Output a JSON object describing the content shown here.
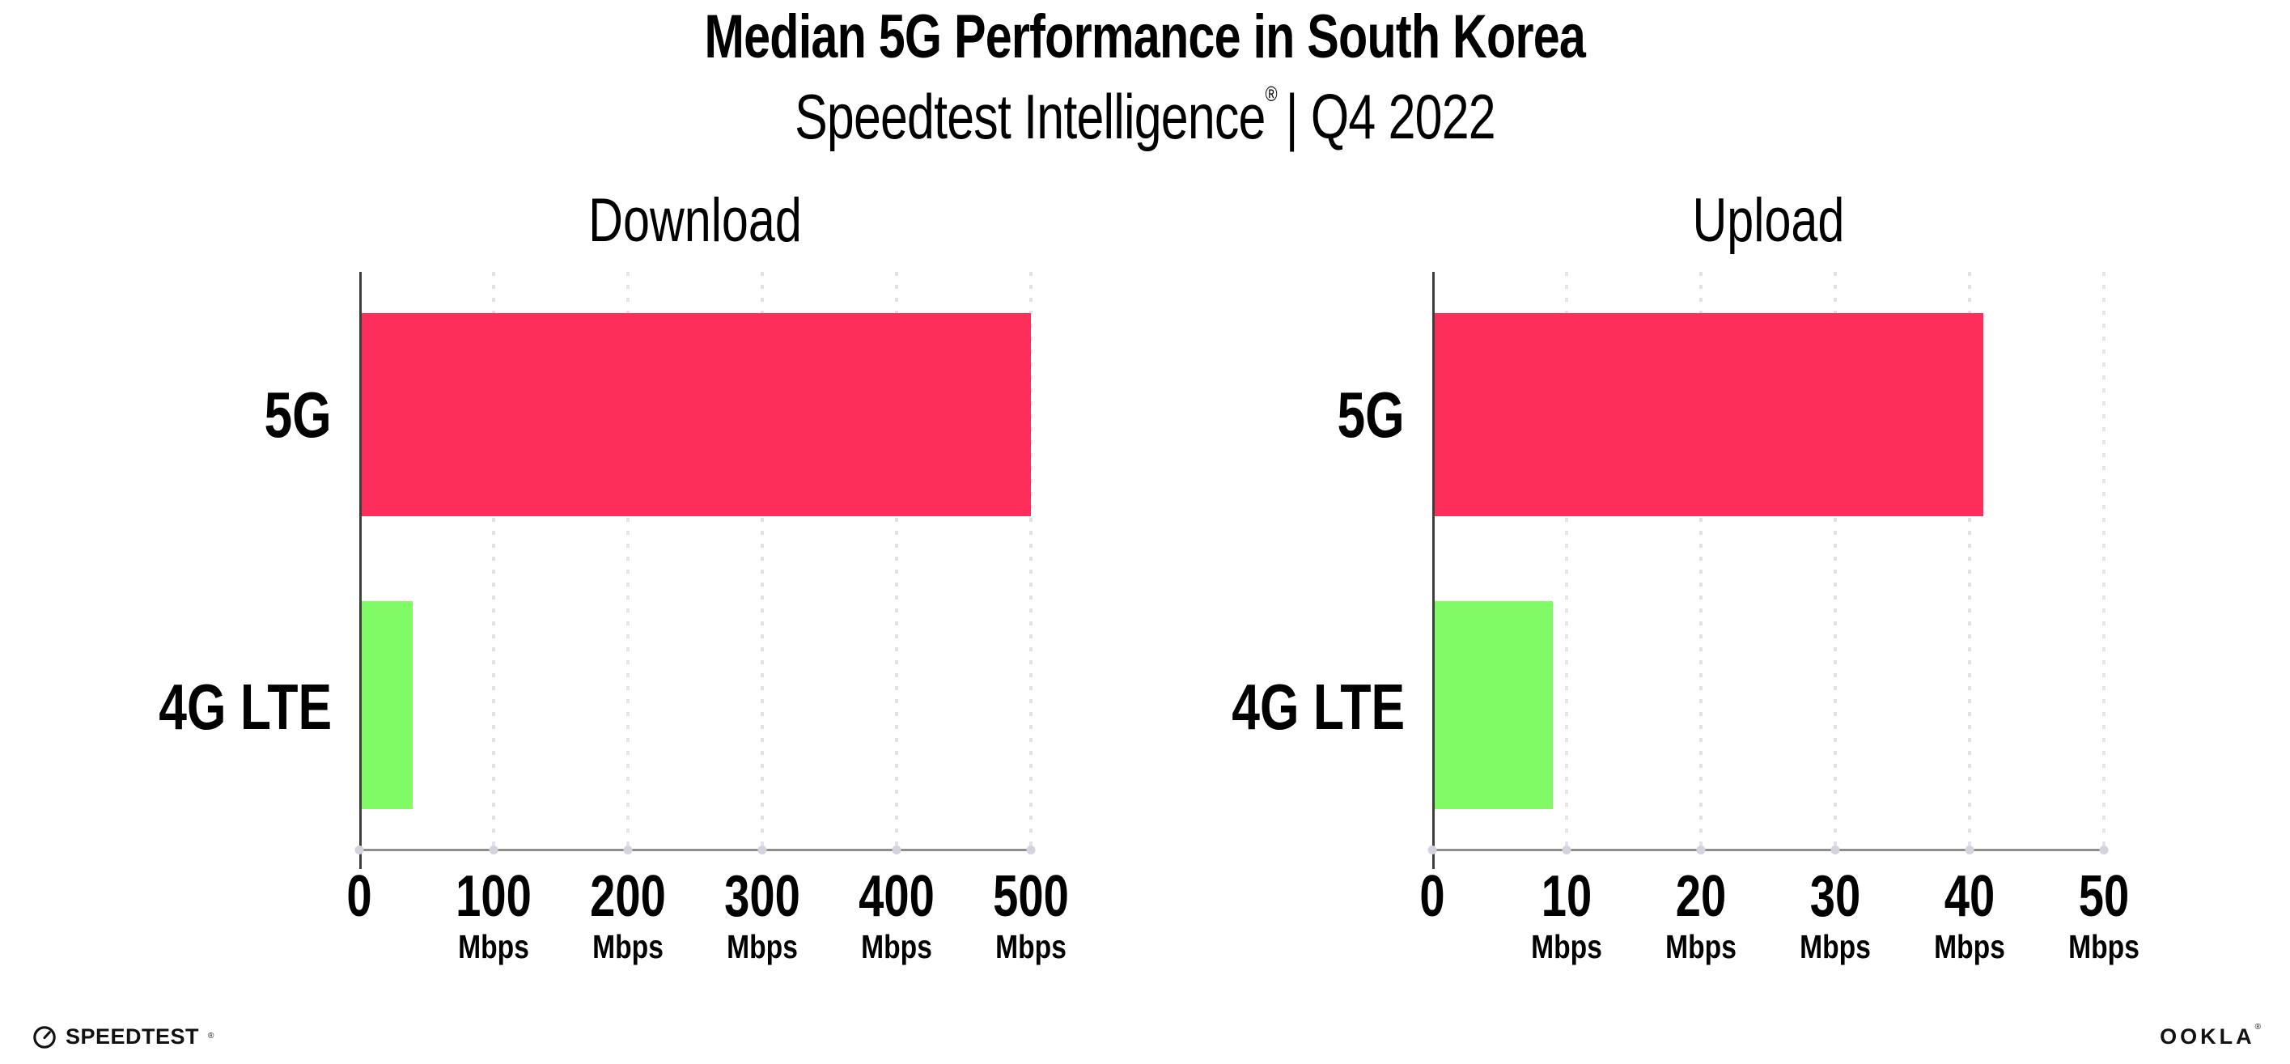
{
  "header": {
    "title": "Median 5G Performance in South Korea",
    "subtitle_brand": "Speedtest Intelligence",
    "subtitle_reg": "®",
    "subtitle_rest": "| Q4 2022"
  },
  "chart_data": [
    {
      "type": "bar",
      "orientation": "horizontal",
      "title": "Download",
      "categories": [
        "5G",
        "4G LTE"
      ],
      "values": [
        500,
        40
      ],
      "unit": "Mbps",
      "xlim": [
        0,
        500
      ],
      "tick_step": 100,
      "tick_labels": [
        "0",
        "100",
        "200",
        "300",
        "400",
        "500"
      ],
      "grid": "dotted-vertical",
      "legend": "none",
      "series_colors": [
        "#FD2E59",
        "#80FB66"
      ]
    },
    {
      "type": "bar",
      "orientation": "horizontal",
      "title": "Upload",
      "categories": [
        "5G",
        "4G LTE"
      ],
      "values": [
        41,
        9
      ],
      "unit": "Mbps",
      "xlim": [
        0,
        50
      ],
      "tick_step": 10,
      "tick_labels": [
        "0",
        "10",
        "20",
        "30",
        "40",
        "50"
      ],
      "grid": "dotted-vertical",
      "legend": "none",
      "series_colors": [
        "#FD2E59",
        "#80FB66"
      ]
    }
  ],
  "colors": {
    "bar_5g": "#FD2E59",
    "bar_4g_lte": "#80FB66",
    "x_axis_line": "#8e8e8e",
    "y_axis_line": "#3e3e3e",
    "gridline": "#e2e2ec",
    "tick_dot": "#d3d3dd",
    "text": "#000000",
    "background": "#ffffff"
  },
  "footer": {
    "speedtest_label": "SPEEDTEST",
    "speedtest_mark": "®",
    "ookla_label": "OOKLA",
    "ookla_mark": "®"
  }
}
